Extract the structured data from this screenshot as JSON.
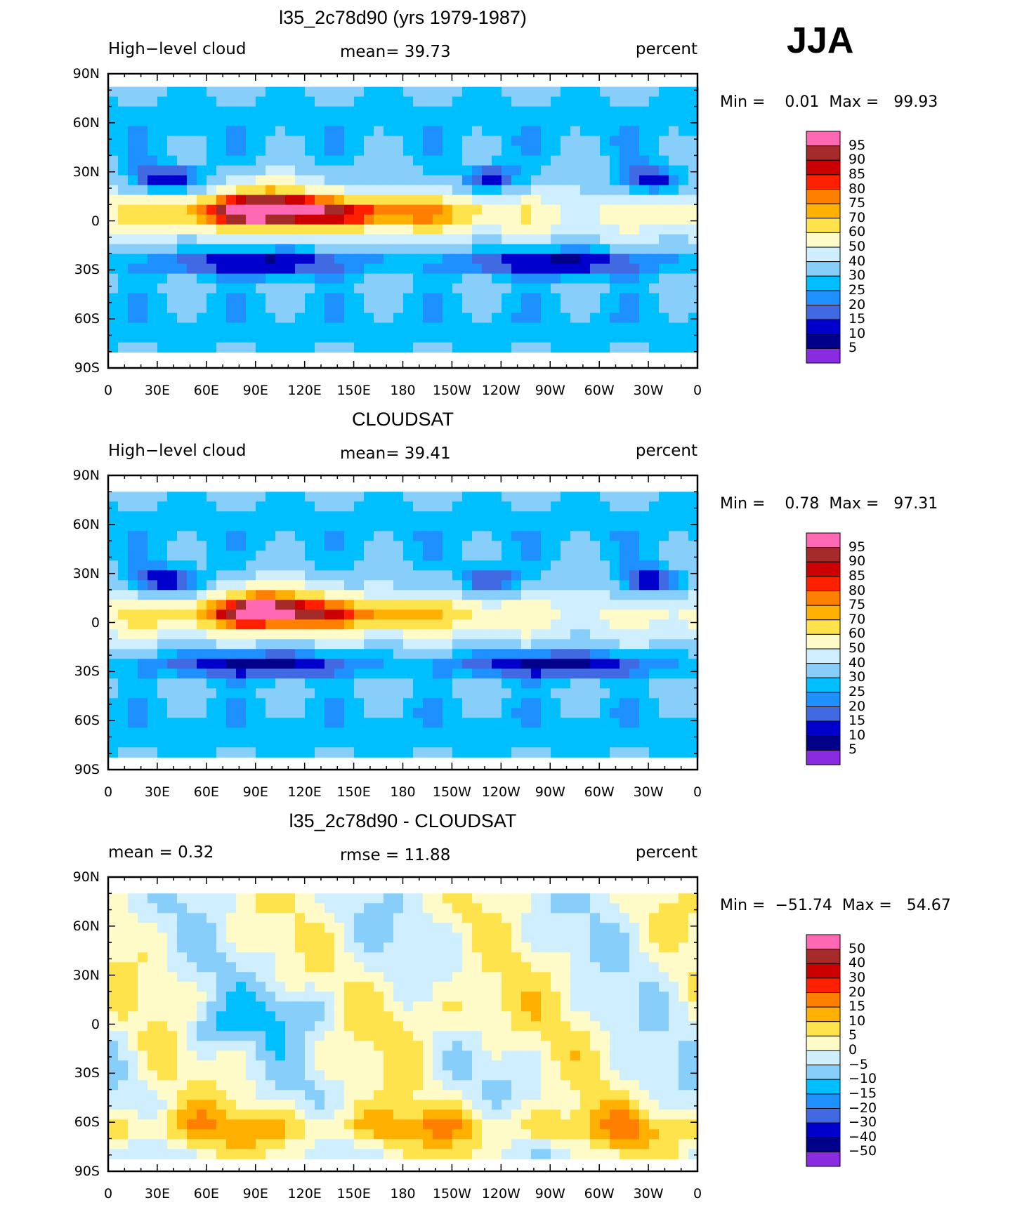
{
  "season": "JJA",
  "palette": {
    "abs": [
      "#8a2be2",
      "#00008b",
      "#0000cd",
      "#4169e1",
      "#1e90ff",
      "#00bfff",
      "#87cefa",
      "#cfeefe",
      "#fffbc8",
      "#ffe34d",
      "#ffb000",
      "#ff7f00",
      "#ff2000",
      "#cc0000",
      "#a52a2a",
      "#ff69b4"
    ],
    "diff": [
      "#8a2be2",
      "#00008b",
      "#0000cd",
      "#4169e1",
      "#1e90ff",
      "#00bfff",
      "#87cefa",
      "#cfeefe",
      "#fffbc8",
      "#ffe34d",
      "#ffb000",
      "#ff7f00",
      "#ff2000",
      "#cc0000",
      "#a52a2a",
      "#ff69b4"
    ]
  },
  "chart_data": [
    {
      "type": "heatmap",
      "title": "l35_2c78d90 (yrs 1979-1987)",
      "left_label": "High−level cloud",
      "center_label": "mean=  39.73",
      "right_label": "percent",
      "minmax": "Min =    0.01  Max =   99.93",
      "x_ticks": [
        "0",
        "30E",
        "60E",
        "90E",
        "120E",
        "150E",
        "180",
        "150W",
        "120W",
        "90W",
        "60W",
        "30W",
        "0"
      ],
      "y_ticks": [
        "90N",
        "60N",
        "30N",
        "0",
        "30S",
        "60S",
        "90S"
      ],
      "legend_levels": [
        "95",
        "90",
        "85",
        "80",
        "75",
        "70",
        "60",
        "50",
        "40",
        "30",
        "25",
        "20",
        "15",
        "10",
        "5"
      ],
      "mean": 39.73,
      "min": 0.01,
      "max": 99.93,
      "variant": "model"
    },
    {
      "type": "heatmap",
      "title": "CLOUDSAT",
      "left_label": "High−level cloud",
      "center_label": "mean=  39.41",
      "right_label": "percent",
      "minmax": "Min =    0.78  Max =   97.31",
      "x_ticks": [
        "0",
        "30E",
        "60E",
        "90E",
        "120E",
        "150E",
        "180",
        "150W",
        "120W",
        "90W",
        "60W",
        "30W",
        "0"
      ],
      "y_ticks": [
        "90N",
        "60N",
        "30N",
        "0",
        "30S",
        "60S",
        "90S"
      ],
      "legend_levels": [
        "95",
        "90",
        "85",
        "80",
        "75",
        "70",
        "60",
        "50",
        "40",
        "30",
        "25",
        "20",
        "15",
        "10",
        "5"
      ],
      "mean": 39.41,
      "min": 0.78,
      "max": 97.31,
      "variant": "obs"
    },
    {
      "type": "heatmap",
      "title": "l35_2c78d90 - CLOUDSAT",
      "left_label": "mean =     0.32",
      "center_label": "rmse  =    11.88",
      "right_label": "percent",
      "minmax": "Min =  −51.74  Max =   54.67",
      "x_ticks": [
        "0",
        "30E",
        "60E",
        "90E",
        "120E",
        "150E",
        "180",
        "150W",
        "120W",
        "90W",
        "60W",
        "30W",
        "0"
      ],
      "y_ticks": [
        "90N",
        "60N",
        "30N",
        "0",
        "30S",
        "60S",
        "90S"
      ],
      "legend_levels": [
        "50",
        "40",
        "30",
        "20",
        "15",
        "10",
        "5",
        "0",
        "−5",
        "−10",
        "−15",
        "−20",
        "−30",
        "−40",
        "−50"
      ],
      "mean": 0.32,
      "rmse": 11.88,
      "min": -51.74,
      "max": 54.67,
      "variant": "diff"
    }
  ]
}
